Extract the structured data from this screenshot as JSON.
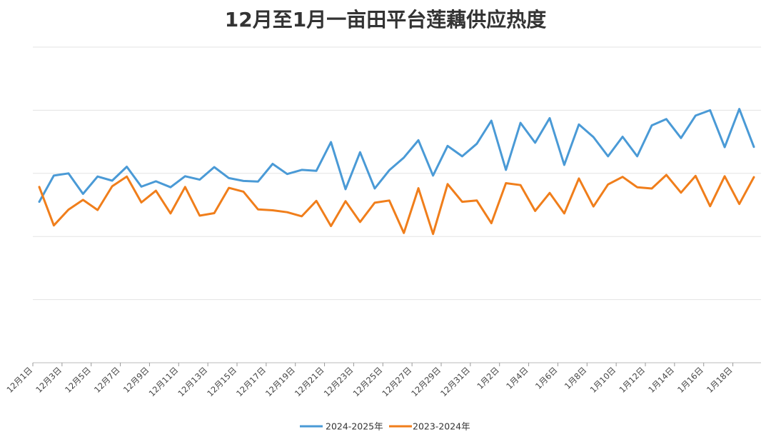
{
  "chart_data": {
    "type": "line",
    "title": "12月至1月一亩田平台莲藕供应热度",
    "xlabel": "",
    "ylabel": "",
    "ylim": [
      0,
      100
    ],
    "grid": true,
    "legend_position": "bottom-center",
    "x_tick_labels": [
      "12月1日",
      "12月3日",
      "12月5日",
      "12月7日",
      "12月9日",
      "12月11日",
      "12月13日",
      "12月15日",
      "12月17日",
      "12月19日",
      "12月21日",
      "12月23日",
      "12月25日",
      "12月27日",
      "12月29日",
      "12月31日",
      "1月2日",
      "1月4日",
      "1月6日",
      "1月8日",
      "1月10日",
      "1月12日",
      "1月14日",
      "1月16日",
      "1月18日"
    ],
    "categories": [
      "12月1日",
      "12月2日",
      "12月3日",
      "12月4日",
      "12月5日",
      "12月6日",
      "12月7日",
      "12月8日",
      "12月9日",
      "12月10日",
      "12月11日",
      "12月12日",
      "12月13日",
      "12月14日",
      "12月15日",
      "12月16日",
      "12月17日",
      "12月18日",
      "12月19日",
      "12月20日",
      "12月21日",
      "12月22日",
      "12月23日",
      "12月24日",
      "12月25日",
      "12月26日",
      "12月27日",
      "12月28日",
      "12月29日",
      "12月30日",
      "12月31日",
      "1月1日",
      "1月2日",
      "1月3日",
      "1月4日",
      "1月5日",
      "1月6日",
      "1月7日",
      "1月8日",
      "1月9日",
      "1月10日",
      "1月11日",
      "1月12日",
      "1月13日",
      "1月14日",
      "1月15日",
      "1月16日",
      "1月17日",
      "1月18日",
      "1月19日"
    ],
    "series": [
      {
        "name": "2024-2025年",
        "color": "#4a9ad6",
        "values": [
          51,
          59.3,
          60,
          53.5,
          59,
          57.7,
          62.1,
          55.8,
          57.5,
          55.6,
          59.1,
          58,
          62,
          58.5,
          57.6,
          57.4,
          63,
          59.8,
          61.1,
          60.8,
          69.9,
          55,
          66.7,
          55.2,
          61,
          65,
          70.5,
          59.3,
          68.7,
          65.4,
          69.4,
          76.7,
          61.1,
          76,
          69.7,
          77.5,
          62.7,
          75.5,
          71.5,
          65.4,
          71.6,
          65.4,
          75.2,
          77.2,
          71.2,
          78.3,
          80,
          68.3,
          80.4,
          68.4
        ]
      },
      {
        "name": "2023-2024年",
        "color": "#f07e1b",
        "values": [
          55.7,
          43.5,
          48.5,
          51.6,
          48.4,
          55.9,
          59,
          50.8,
          54.5,
          47.3,
          55.7,
          46.6,
          47.4,
          55.4,
          54.2,
          48.6,
          48.3,
          47.7,
          46.4,
          51.3,
          43.3,
          51.2,
          44.6,
          50.7,
          51.4,
          41.1,
          55.3,
          40.8,
          56.6,
          51,
          51.4,
          44.2,
          56.9,
          56.3,
          48.1,
          53.8,
          47.3,
          58.4,
          49.5,
          56.5,
          58.9,
          55.6,
          55.2,
          59.5,
          53.9,
          59.2,
          49.6,
          59.1,
          50.3,
          58.8
        ]
      }
    ]
  }
}
